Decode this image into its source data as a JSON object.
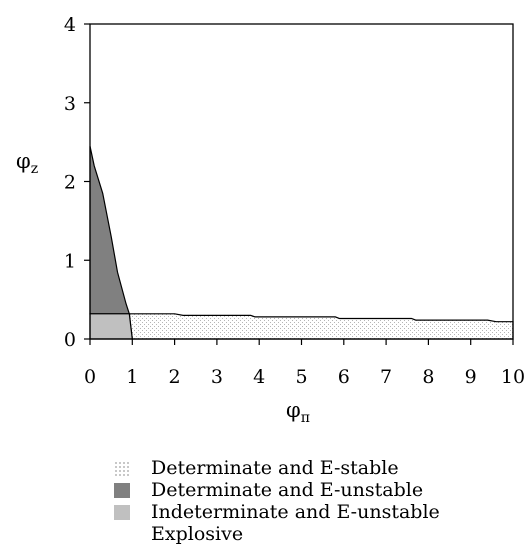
{
  "chart_data": {
    "type": "area",
    "xlabel_base": "φ",
    "xlabel_sub": "π",
    "ylabel_base": "φ",
    "ylabel_sub": "z",
    "xlim": [
      0,
      10
    ],
    "ylim": [
      0,
      4
    ],
    "x_ticks": [
      "0",
      "1",
      "2",
      "3",
      "4",
      "5",
      "6",
      "7",
      "8",
      "9",
      "10"
    ],
    "y_ticks": [
      "0",
      "1",
      "2",
      "3",
      "4"
    ],
    "grid": false,
    "legend_position": "bottom",
    "regions": [
      {
        "name": "Determinate and E-stable",
        "fill": "dotted",
        "color": "#f2f2f2",
        "polygon": [
          [
            1.0,
            0.0
          ],
          [
            0.93,
            0.32
          ],
          [
            2.0,
            0.32
          ],
          [
            2.2,
            0.3
          ],
          [
            3.8,
            0.3
          ],
          [
            3.9,
            0.28
          ],
          [
            5.8,
            0.28
          ],
          [
            5.9,
            0.26
          ],
          [
            7.6,
            0.26
          ],
          [
            7.7,
            0.24
          ],
          [
            9.4,
            0.24
          ],
          [
            9.6,
            0.22
          ],
          [
            10.0,
            0.22
          ],
          [
            10.0,
            0.0
          ]
        ]
      },
      {
        "name": "Determinate and E-unstable",
        "fill": "solid",
        "color": "#808080",
        "polygon": [
          [
            0.0,
            0.32
          ],
          [
            0.0,
            2.45
          ],
          [
            0.1,
            2.2
          ],
          [
            0.3,
            1.85
          ],
          [
            0.5,
            1.3
          ],
          [
            0.65,
            0.85
          ],
          [
            0.85,
            0.45
          ],
          [
            0.93,
            0.32
          ]
        ]
      },
      {
        "name": "Indeterminate and E-unstable",
        "fill": "solid",
        "color": "#c0c0c0",
        "polygon": [
          [
            0.0,
            0.0
          ],
          [
            0.0,
            0.32
          ],
          [
            0.93,
            0.32
          ],
          [
            1.0,
            0.0
          ]
        ]
      }
    ],
    "legend": [
      {
        "label": "Determinate and E-stable",
        "swatch": "dotted"
      },
      {
        "label": "Determinate and E-unstable",
        "swatch": "#808080"
      },
      {
        "label": "Indeterminate and E-unstable",
        "swatch": "#c0c0c0"
      },
      {
        "label": "Explosive",
        "swatch": "none"
      }
    ]
  }
}
